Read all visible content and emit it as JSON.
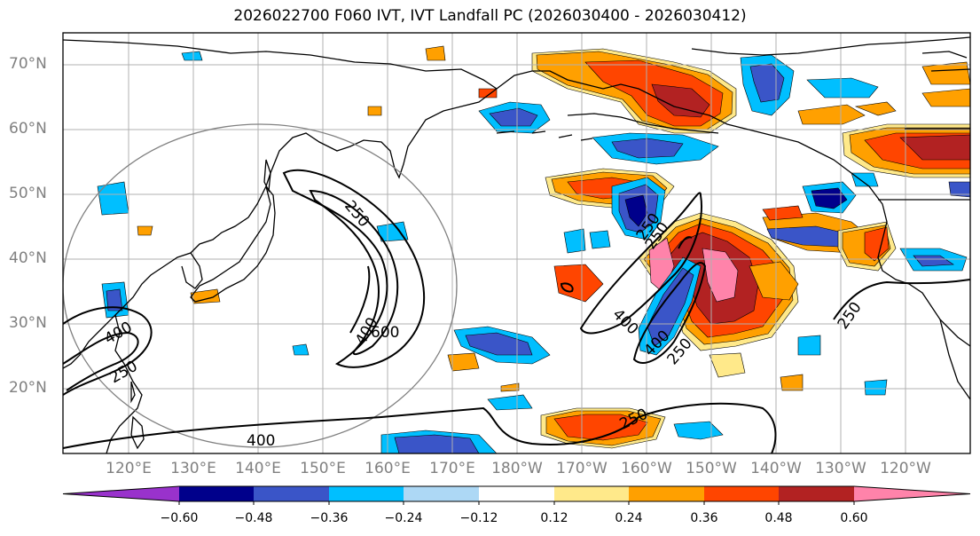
{
  "title": "2026022700 F060 IVT, IVT Landfall PC (2026030400 - 2026030412)",
  "latitude_labels": [
    "70°N",
    "60°N",
    "50°N",
    "40°N",
    "30°N",
    "20°N"
  ],
  "longitude_labels": [
    "120°E",
    "130°E",
    "140°E",
    "150°E",
    "160°E",
    "170°E",
    "180°W",
    "170°W",
    "160°W",
    "150°W",
    "140°W",
    "130°W",
    "120°W"
  ],
  "contour_labels": [
    "250",
    "400",
    "600",
    "250",
    "400",
    "250",
    "400",
    "250",
    "400",
    "250",
    "400",
    "250",
    "250"
  ],
  "colorbar": {
    "ticks": [
      "−0.60",
      "−0.48",
      "−0.36",
      "−0.24",
      "−0.12",
      "0.12",
      "0.24",
      "0.36",
      "0.48",
      "0.60"
    ],
    "colors": [
      "#9932cc",
      "#00008b",
      "#3a55c8",
      "#00bfff",
      "#add8f5",
      "#ffffff",
      "#ffe98a",
      "#ffa000",
      "#ff4500",
      "#b22222",
      "#ff83aa"
    ]
  },
  "colors": {
    "coast": "#000000",
    "grid": "#b0b0b0",
    "ivt_contour": "#000000",
    "circle": "#808080"
  }
}
